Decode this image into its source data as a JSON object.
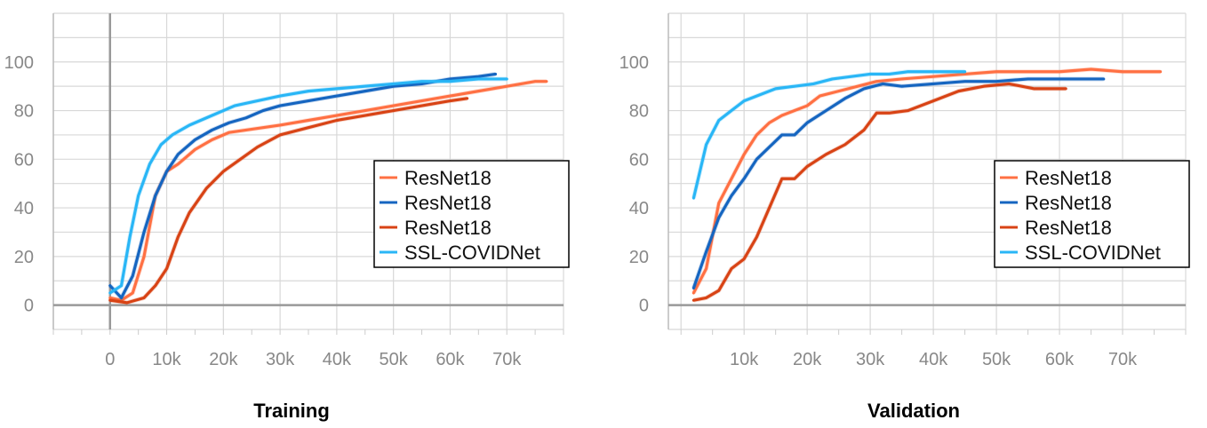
{
  "chart_data": [
    {
      "type": "line",
      "title": "Training",
      "xlabel": "",
      "ylabel": "",
      "xlim": [
        -10000,
        80000
      ],
      "ylim": [
        -10,
        120
      ],
      "xticks": [
        "0",
        "10k",
        "20k",
        "30k",
        "40k",
        "50k",
        "60k",
        "70k"
      ],
      "xtick_values": [
        0,
        10000,
        20000,
        30000,
        40000,
        50000,
        60000,
        70000
      ],
      "yticks": [
        "0",
        "20",
        "40",
        "60",
        "80",
        "100"
      ],
      "ytick_values": [
        0,
        20,
        40,
        60,
        80,
        100
      ],
      "grid": true,
      "legend_position": "right",
      "series": [
        {
          "name": "ResNet18",
          "color": "#ff7043",
          "x": [
            0,
            2000,
            4000,
            6000,
            8000,
            10000,
            12000,
            15000,
            18000,
            21000,
            24000,
            27000,
            30000,
            35000,
            40000,
            45000,
            50000,
            55000,
            60000,
            65000,
            70000,
            75000,
            77000
          ],
          "y": [
            3,
            2,
            5,
            20,
            45,
            55,
            58,
            64,
            68,
            71,
            72,
            73,
            74,
            76,
            78,
            80,
            82,
            84,
            86,
            88,
            90,
            92,
            92
          ]
        },
        {
          "name": "ResNet18",
          "color": "#1565c0",
          "x": [
            0,
            2000,
            4000,
            6000,
            8000,
            10000,
            12000,
            15000,
            18000,
            21000,
            24000,
            27000,
            30000,
            35000,
            40000,
            45000,
            50000,
            55000,
            60000,
            65000,
            68000
          ],
          "y": [
            8,
            3,
            12,
            30,
            45,
            55,
            62,
            68,
            72,
            75,
            77,
            80,
            82,
            84,
            86,
            88,
            90,
            91,
            93,
            94,
            95
          ]
        },
        {
          "name": "ResNet18",
          "color": "#d84315",
          "x": [
            0,
            3000,
            6000,
            8000,
            10000,
            12000,
            14000,
            17000,
            20000,
            23000,
            26000,
            30000,
            35000,
            40000,
            45000,
            50000,
            55000,
            60000,
            63000
          ],
          "y": [
            2,
            1,
            3,
            8,
            15,
            28,
            38,
            48,
            55,
            60,
            65,
            70,
            73,
            76,
            78,
            80,
            82,
            84,
            85
          ]
        },
        {
          "name": "SSL-COVIDNet",
          "color": "#29b6f6",
          "x": [
            0,
            2000,
            3500,
            5000,
            7000,
            9000,
            11000,
            14000,
            18000,
            22000,
            26000,
            30000,
            35000,
            40000,
            45000,
            50000,
            55000,
            60000,
            65000,
            70000
          ],
          "y": [
            5,
            8,
            28,
            45,
            58,
            66,
            70,
            74,
            78,
            82,
            84,
            86,
            88,
            89,
            90,
            91,
            92,
            92,
            93,
            93
          ]
        }
      ]
    },
    {
      "type": "line",
      "title": "Validation",
      "xlabel": "",
      "ylabel": "",
      "xlim": [
        -2000,
        80000
      ],
      "ylim": [
        -10,
        120
      ],
      "xticks": [
        "10k",
        "20k",
        "30k",
        "40k",
        "50k",
        "60k",
        "70k"
      ],
      "xtick_values": [
        10000,
        20000,
        30000,
        40000,
        50000,
        60000,
        70000
      ],
      "yticks": [
        "0",
        "20",
        "40",
        "60",
        "80",
        "100"
      ],
      "ytick_values": [
        0,
        20,
        40,
        60,
        80,
        100
      ],
      "grid": true,
      "legend_position": "right",
      "series": [
        {
          "name": "ResNet18",
          "color": "#ff7043",
          "x": [
            2000,
            4000,
            6000,
            8000,
            10000,
            12000,
            14000,
            16000,
            18000,
            20000,
            22000,
            25000,
            28000,
            31000,
            35000,
            40000,
            45000,
            50000,
            55000,
            60000,
            65000,
            70000,
            76000
          ],
          "y": [
            5,
            15,
            42,
            52,
            62,
            70,
            75,
            78,
            80,
            82,
            86,
            88,
            90,
            92,
            93,
            94,
            95,
            96,
            96,
            96,
            97,
            96,
            96
          ]
        },
        {
          "name": "ResNet18",
          "color": "#1565c0",
          "x": [
            2000,
            4000,
            6000,
            8000,
            10000,
            12000,
            14000,
            16000,
            18000,
            20000,
            23000,
            26000,
            29000,
            32000,
            35000,
            40000,
            45000,
            50000,
            55000,
            60000,
            67000
          ],
          "y": [
            7,
            22,
            36,
            45,
            52,
            60,
            65,
            70,
            70,
            75,
            80,
            85,
            89,
            91,
            90,
            91,
            92,
            92,
            93,
            93,
            93
          ]
        },
        {
          "name": "ResNet18",
          "color": "#d84315",
          "x": [
            2000,
            4000,
            6000,
            8000,
            10000,
            12000,
            14000,
            16000,
            18000,
            20000,
            23000,
            26000,
            29000,
            31000,
            33000,
            36000,
            40000,
            44000,
            48000,
            52000,
            56000,
            61000
          ],
          "y": [
            2,
            3,
            6,
            15,
            19,
            28,
            40,
            52,
            52,
            57,
            62,
            66,
            72,
            79,
            79,
            80,
            84,
            88,
            90,
            91,
            89,
            89
          ]
        },
        {
          "name": "SSL-COVIDNet",
          "color": "#29b6f6",
          "x": [
            2000,
            4000,
            6000,
            8000,
            10000,
            12000,
            15000,
            18000,
            21000,
            24000,
            27000,
            30000,
            33000,
            36000,
            40000,
            45000
          ],
          "y": [
            44,
            66,
            76,
            80,
            84,
            86,
            89,
            90,
            91,
            93,
            94,
            95,
            95,
            96,
            96,
            96
          ]
        }
      ]
    }
  ]
}
